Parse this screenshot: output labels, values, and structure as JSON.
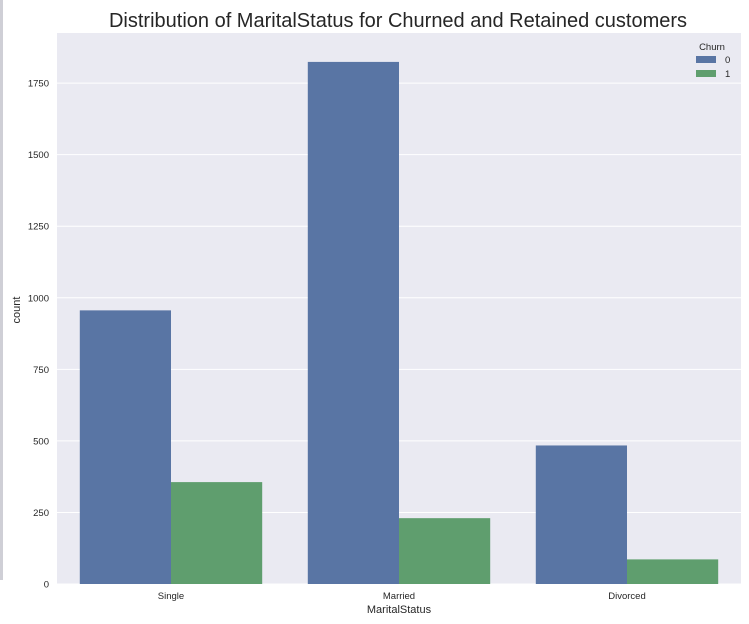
{
  "colors": {
    "background": "#EAEAF2",
    "grid": "#FFFFFF",
    "series_0": "#5975A4",
    "series_1": "#5F9E6E",
    "text": "#262626"
  },
  "chart_data": {
    "type": "bar",
    "title": "Distribution of MaritalStatus for Churned and Retained customers",
    "xlabel": "MaritalStatus",
    "ylabel": "count",
    "categories": [
      "Single",
      "Married",
      "Divorced"
    ],
    "series": [
      {
        "name": "0",
        "values": [
          956,
          1824,
          484
        ]
      },
      {
        "name": "1",
        "values": [
          356,
          230,
          86
        ]
      }
    ],
    "ylim": [
      0,
      1925
    ],
    "yticks": [
      0,
      250,
      500,
      750,
      1000,
      1250,
      1500,
      1750
    ],
    "grid": true,
    "legend": {
      "title": "Churn",
      "placement": "top-right"
    }
  }
}
